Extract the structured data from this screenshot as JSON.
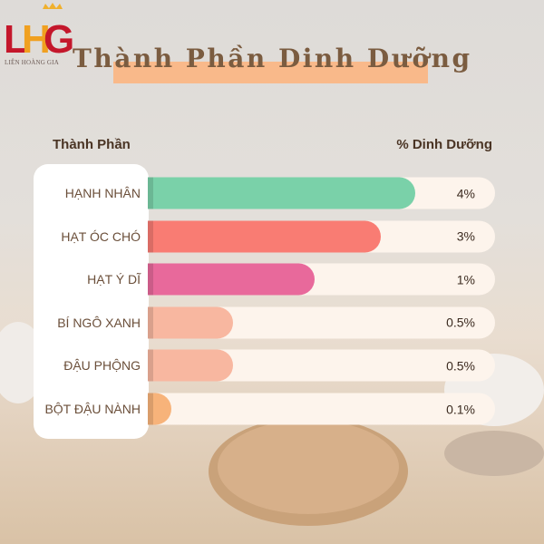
{
  "logo": {
    "text": "LHG",
    "subtitle": "LIÊN HOÀNG GIA"
  },
  "chart_data": {
    "type": "bar",
    "orientation": "horizontal",
    "title": "Thành Phần Dinh Dưỡng",
    "xlabel": "% Dinh Dưỡng",
    "ylabel": "Thành Phần",
    "categories": [
      "HẠNH NHÂN",
      "HẠT ÓC CHÓ",
      "HẠT Ý DĨ",
      "BÍ NGÔ XANH",
      "ĐẬU PHỘNG",
      "BỘT ĐẬU NÀNH"
    ],
    "values": [
      4,
      3,
      1,
      0.5,
      0.5,
      0.1
    ],
    "value_labels": [
      "4%",
      "3%",
      "1%",
      "0.5%",
      "0.5%",
      "0.1%"
    ],
    "colors": [
      "#7ad1a9",
      "#f97c73",
      "#e8699b",
      "#f8b7a0",
      "#f8b7a0",
      "#f7b37a"
    ],
    "grid": false
  }
}
